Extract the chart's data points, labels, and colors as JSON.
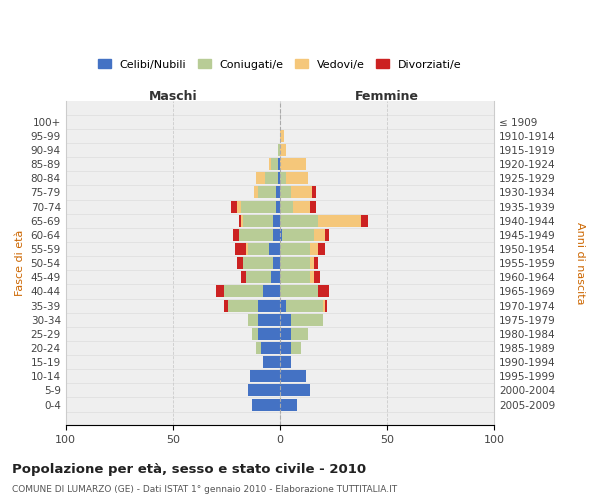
{
  "age_groups": [
    "0-4",
    "5-9",
    "10-14",
    "15-19",
    "20-24",
    "25-29",
    "30-34",
    "35-39",
    "40-44",
    "45-49",
    "50-54",
    "55-59",
    "60-64",
    "65-69",
    "70-74",
    "75-79",
    "80-84",
    "85-89",
    "90-94",
    "95-99",
    "100+"
  ],
  "birth_years": [
    "2005-2009",
    "2000-2004",
    "1995-1999",
    "1990-1994",
    "1985-1989",
    "1980-1984",
    "1975-1979",
    "1970-1974",
    "1965-1969",
    "1960-1964",
    "1955-1959",
    "1950-1954",
    "1945-1949",
    "1940-1944",
    "1935-1939",
    "1930-1934",
    "1925-1929",
    "1920-1924",
    "1915-1919",
    "1910-1914",
    "≤ 1909"
  ],
  "maschi": {
    "celibi": [
      13,
      15,
      14,
      8,
      9,
      10,
      10,
      10,
      8,
      4,
      3,
      5,
      3,
      3,
      2,
      2,
      1,
      1,
      0,
      0,
      0
    ],
    "coniugati": [
      0,
      0,
      0,
      0,
      2,
      3,
      5,
      14,
      18,
      12,
      14,
      10,
      16,
      14,
      16,
      8,
      6,
      3,
      1,
      0,
      0
    ],
    "vedovi": [
      0,
      0,
      0,
      0,
      0,
      0,
      0,
      0,
      0,
      0,
      0,
      1,
      0,
      1,
      2,
      2,
      4,
      1,
      0,
      0,
      0
    ],
    "divorziati": [
      0,
      0,
      0,
      0,
      0,
      0,
      0,
      2,
      4,
      2,
      3,
      5,
      3,
      1,
      3,
      0,
      0,
      0,
      0,
      0,
      0
    ]
  },
  "femmine": {
    "nubili": [
      8,
      14,
      12,
      5,
      5,
      5,
      5,
      3,
      0,
      0,
      0,
      0,
      1,
      0,
      0,
      0,
      0,
      0,
      0,
      0,
      0
    ],
    "coniugate": [
      0,
      0,
      0,
      0,
      5,
      8,
      15,
      17,
      18,
      14,
      14,
      14,
      15,
      18,
      6,
      5,
      3,
      0,
      0,
      0,
      0
    ],
    "vedove": [
      0,
      0,
      0,
      0,
      0,
      0,
      0,
      1,
      0,
      2,
      2,
      4,
      5,
      20,
      8,
      10,
      10,
      12,
      3,
      2,
      0
    ],
    "divorziate": [
      0,
      0,
      0,
      0,
      0,
      0,
      0,
      1,
      5,
      3,
      2,
      3,
      2,
      3,
      3,
      2,
      0,
      0,
      0,
      0,
      0
    ]
  },
  "colors": {
    "celibi_nubili": "#4472c4",
    "coniugati": "#b8cc96",
    "vedovi": "#f5c77a",
    "divorziati": "#cc2222"
  },
  "xlim": [
    -100,
    100
  ],
  "xticks": [
    -100,
    -50,
    0,
    50,
    100
  ],
  "xticklabels": [
    "100",
    "50",
    "0",
    "50",
    "100"
  ],
  "title": "Popolazione per età, sesso e stato civile - 2010",
  "subtitle": "COMUNE DI LUMARZO (GE) - Dati ISTAT 1° gennaio 2010 - Elaborazione TUTTITALIA.IT",
  "ylabel_left": "Fasce di età",
  "ylabel_right": "Anni di nascita",
  "xlabel_maschi": "Maschi",
  "xlabel_femmine": "Femmine",
  "legend_labels": [
    "Celibi/Nubili",
    "Coniugati/e",
    "Vedovi/e",
    "Divorziati/e"
  ],
  "bg_color": "#efefef",
  "bar_height": 0.85
}
